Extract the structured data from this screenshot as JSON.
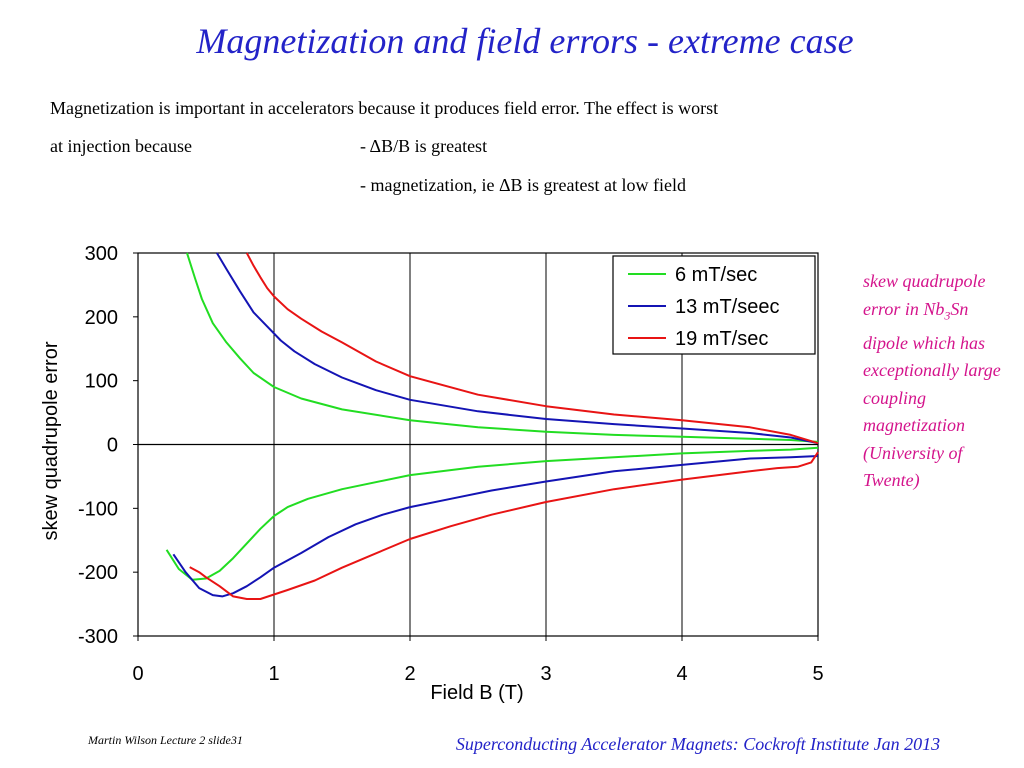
{
  "slide": {
    "title": "Magnetization and field errors - extreme case",
    "intro_line1": "Magnetization is important in accelerators because it produces field error.  The effect is worst",
    "intro_line2": "at injection because",
    "reason1": "- ΔB/B is greatest",
    "reason2": "- magnetization, ie ΔB is greatest at low field",
    "note_part1": "skew quadrupole error in Nb",
    "note_sub": "3",
    "note_part2": "Sn dipole which has exceptionally large coupling magnetization (University of Twente)",
    "footer_left": "Martin Wilson Lecture 2 slide31",
    "footer_right": "Superconducting Accelerator Magnets:  Cockroft Institute Jan 2013"
  },
  "chart_data": {
    "type": "line",
    "xlabel": "Field B (T)",
    "ylabel": "skew quadrupole error",
    "xlim": [
      0,
      5
    ],
    "ylim": [
      -300,
      300
    ],
    "x_ticks": [
      "0",
      "1",
      "2",
      "3",
      "4",
      "5"
    ],
    "y_ticks": [
      "300",
      "200",
      "100",
      "0",
      "-100",
      "-200",
      "-300"
    ],
    "grid": true,
    "legend_position": "top-right",
    "series": [
      {
        "name": "6 mT/sec",
        "color": "#22dd22",
        "upper": [
          [
            0.36,
            300
          ],
          [
            0.42,
            260
          ],
          [
            0.47,
            228
          ],
          [
            0.55,
            190
          ],
          [
            0.65,
            160
          ],
          [
            0.75,
            135
          ],
          [
            0.85,
            112
          ],
          [
            1.0,
            90
          ],
          [
            1.2,
            72
          ],
          [
            1.5,
            55
          ],
          [
            2.0,
            38
          ],
          [
            2.5,
            27
          ],
          [
            3.0,
            20
          ],
          [
            3.5,
            15
          ],
          [
            4.0,
            12
          ],
          [
            4.5,
            9
          ],
          [
            4.8,
            7
          ],
          [
            5.0,
            4
          ]
        ],
        "lower": [
          [
            0.21,
            -165
          ],
          [
            0.3,
            -195
          ],
          [
            0.4,
            -212
          ],
          [
            0.5,
            -210
          ],
          [
            0.6,
            -198
          ],
          [
            0.7,
            -178
          ],
          [
            0.8,
            -155
          ],
          [
            0.9,
            -132
          ],
          [
            1.0,
            -112
          ],
          [
            1.1,
            -98
          ],
          [
            1.25,
            -85
          ],
          [
            1.5,
            -70
          ],
          [
            2.0,
            -48
          ],
          [
            2.5,
            -35
          ],
          [
            3.0,
            -26
          ],
          [
            3.5,
            -20
          ],
          [
            4.0,
            -14
          ],
          [
            4.5,
            -10
          ],
          [
            4.8,
            -8
          ],
          [
            5.0,
            -5
          ]
        ]
      },
      {
        "name": "13 mT/seec",
        "color": "#1414b4",
        "upper": [
          [
            0.58,
            300
          ],
          [
            0.65,
            275
          ],
          [
            0.75,
            240
          ],
          [
            0.85,
            207
          ],
          [
            0.95,
            185
          ],
          [
            1.05,
            163
          ],
          [
            1.15,
            146
          ],
          [
            1.3,
            126
          ],
          [
            1.5,
            105
          ],
          [
            1.75,
            85
          ],
          [
            2.0,
            70
          ],
          [
            2.5,
            52
          ],
          [
            3.0,
            40
          ],
          [
            3.5,
            32
          ],
          [
            4.0,
            25
          ],
          [
            4.5,
            18
          ],
          [
            4.8,
            11
          ],
          [
            5.0,
            2
          ]
        ],
        "lower": [
          [
            0.26,
            -172
          ],
          [
            0.35,
            -200
          ],
          [
            0.45,
            -225
          ],
          [
            0.55,
            -236
          ],
          [
            0.62,
            -238
          ],
          [
            0.7,
            -233
          ],
          [
            0.8,
            -222
          ],
          [
            0.9,
            -208
          ],
          [
            1.0,
            -193
          ],
          [
            1.2,
            -170
          ],
          [
            1.4,
            -145
          ],
          [
            1.6,
            -125
          ],
          [
            1.8,
            -110
          ],
          [
            2.0,
            -98
          ],
          [
            2.3,
            -85
          ],
          [
            2.6,
            -72
          ],
          [
            3.0,
            -58
          ],
          [
            3.5,
            -42
          ],
          [
            4.0,
            -32
          ],
          [
            4.5,
            -22
          ],
          [
            4.8,
            -20
          ],
          [
            5.0,
            -18
          ]
        ]
      },
      {
        "name": "19 mT/sec",
        "color": "#e81414",
        "upper": [
          [
            0.8,
            300
          ],
          [
            0.85,
            280
          ],
          [
            0.9,
            262
          ],
          [
            0.95,
            245
          ],
          [
            1.0,
            232
          ],
          [
            1.1,
            212
          ],
          [
            1.2,
            197
          ],
          [
            1.35,
            177
          ],
          [
            1.5,
            160
          ],
          [
            1.75,
            130
          ],
          [
            2.0,
            107
          ],
          [
            2.5,
            78
          ],
          [
            3.0,
            60
          ],
          [
            3.5,
            47
          ],
          [
            4.0,
            38
          ],
          [
            4.5,
            27
          ],
          [
            4.8,
            15
          ],
          [
            5.0,
            2
          ]
        ],
        "lower": [
          [
            0.38,
            -192
          ],
          [
            0.45,
            -200
          ],
          [
            0.5,
            -208
          ],
          [
            0.6,
            -222
          ],
          [
            0.7,
            -238
          ],
          [
            0.8,
            -242
          ],
          [
            0.9,
            -242
          ],
          [
            1.0,
            -235
          ],
          [
            1.1,
            -228
          ],
          [
            1.3,
            -213
          ],
          [
            1.5,
            -193
          ],
          [
            1.7,
            -175
          ],
          [
            2.0,
            -148
          ],
          [
            2.3,
            -128
          ],
          [
            2.6,
            -110
          ],
          [
            3.0,
            -90
          ],
          [
            3.5,
            -70
          ],
          [
            4.0,
            -55
          ],
          [
            4.5,
            -42
          ],
          [
            4.7,
            -37
          ],
          [
            4.85,
            -35
          ],
          [
            4.95,
            -28
          ],
          [
            5.0,
            -12
          ]
        ]
      }
    ]
  }
}
